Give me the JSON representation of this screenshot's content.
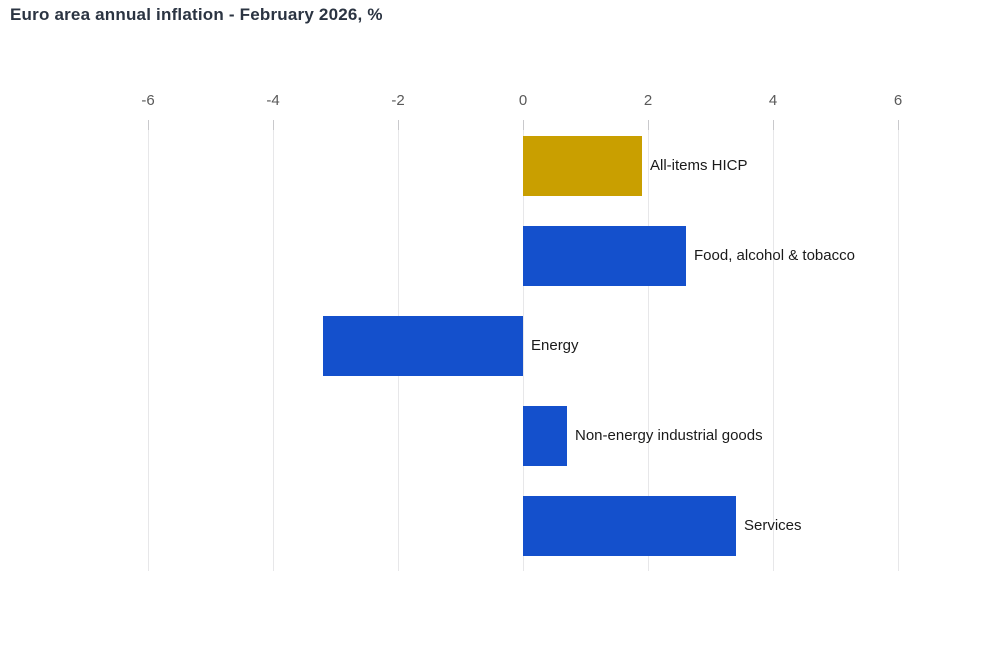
{
  "title": "Euro area annual inflation - February 2026, %",
  "colors": {
    "bar_default": "#1450cc",
    "bar_highlight": "#c99f00",
    "title_text": "#2b3442",
    "axis_label": "#595959",
    "category_label": "#1a1a1a",
    "gridline": "#e7e7e9",
    "tick_mark": "#c9c9cc",
    "background": "#ffffff"
  },
  "chart_data": {
    "type": "bar",
    "orientation": "horizontal",
    "title": "Euro area annual inflation - February 2026, %",
    "categories": [
      "All-items HICP",
      "Food, alcohol & tobacco",
      "Energy",
      "Non-energy industrial goods",
      "Services"
    ],
    "values": [
      1.9,
      2.6,
      -3.2,
      0.7,
      3.4
    ],
    "bar_colors": [
      "#c99f00",
      "#1450cc",
      "#1450cc",
      "#1450cc",
      "#1450cc"
    ],
    "xlabel": "",
    "ylabel": "",
    "x_ticks": [
      -6,
      -4,
      -2,
      0,
      2,
      4,
      6
    ],
    "xlim": [
      -6,
      6
    ],
    "grid": true,
    "axis_position": "top",
    "label_position": "right-of-bar",
    "legend": null
  }
}
